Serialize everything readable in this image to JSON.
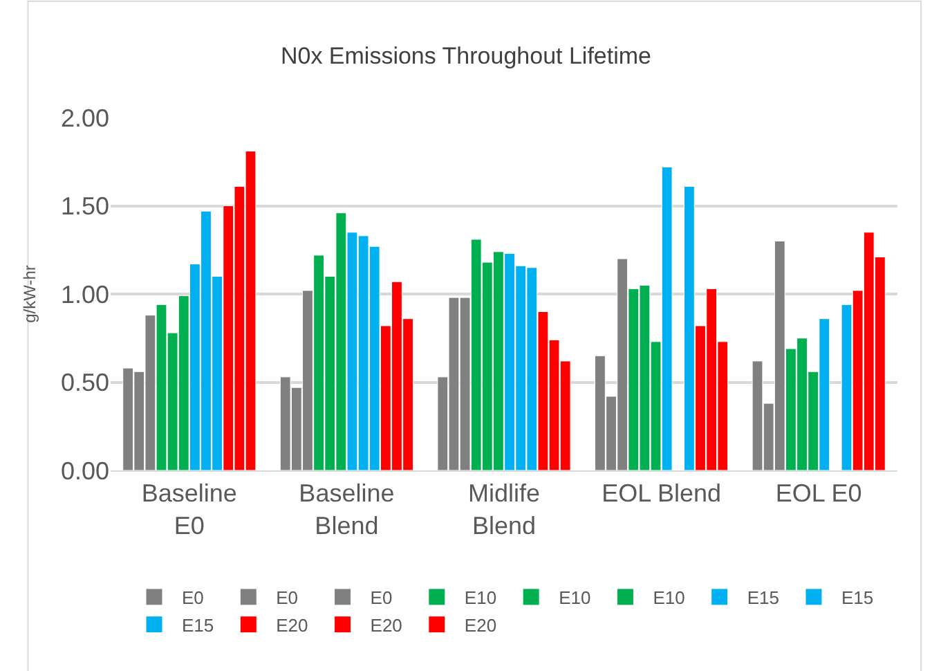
{
  "chart_data": {
    "type": "bar",
    "title": "N0x Emissions Throughout Lifetime",
    "ylabel": "g/kW-hr",
    "categories": [
      "Baseline\nE0",
      "Baseline\nBlend",
      "Midlife\nBlend",
      "EOL Blend",
      "EOL E0"
    ],
    "series": [
      {
        "name": "E0",
        "color": "#808080",
        "values": [
          0.58,
          0.53,
          0.53,
          0.65,
          0.62
        ]
      },
      {
        "name": "E0",
        "color": "#808080",
        "values": [
          0.56,
          0.47,
          0.98,
          0.42,
          0.38
        ]
      },
      {
        "name": "E0",
        "color": "#808080",
        "values": [
          0.88,
          1.02,
          0.98,
          1.2,
          1.3
        ]
      },
      {
        "name": "E10",
        "color": "#00b050",
        "values": [
          0.94,
          1.22,
          1.31,
          1.03,
          0.69
        ]
      },
      {
        "name": "E10",
        "color": "#00b050",
        "values": [
          0.78,
          1.1,
          1.18,
          1.05,
          0.75
        ]
      },
      {
        "name": "E10",
        "color": "#00b050",
        "values": [
          0.99,
          1.46,
          1.24,
          0.73,
          0.56
        ]
      },
      {
        "name": "E15",
        "color": "#00b0f0",
        "values": [
          1.17,
          1.35,
          1.23,
          1.72,
          0.86
        ]
      },
      {
        "name": "E15",
        "color": "#00b0f0",
        "values": [
          1.47,
          1.33,
          1.16,
          null,
          null
        ]
      },
      {
        "name": "E15",
        "color": "#00b0f0",
        "values": [
          1.1,
          1.27,
          1.15,
          1.61,
          0.94
        ]
      },
      {
        "name": "E20",
        "color": "#ff0000",
        "values": [
          1.5,
          0.82,
          0.9,
          0.82,
          1.02
        ]
      },
      {
        "name": "E20",
        "color": "#ff0000",
        "values": [
          1.61,
          1.07,
          0.74,
          1.03,
          1.35
        ]
      },
      {
        "name": "E20",
        "color": "#ff0000",
        "values": [
          1.81,
          0.86,
          0.62,
          0.73,
          1.21
        ]
      }
    ],
    "ylim": [
      0,
      2
    ],
    "yticks": [
      {
        "value": 0,
        "label": "0.00"
      },
      {
        "value": 0.5,
        "label": "0.50"
      },
      {
        "value": 1,
        "label": "1.00"
      },
      {
        "value": 1.5,
        "label": "1.50"
      },
      {
        "value": 2,
        "label": "2.00"
      }
    ],
    "grid": "y",
    "legend": "bottom"
  }
}
